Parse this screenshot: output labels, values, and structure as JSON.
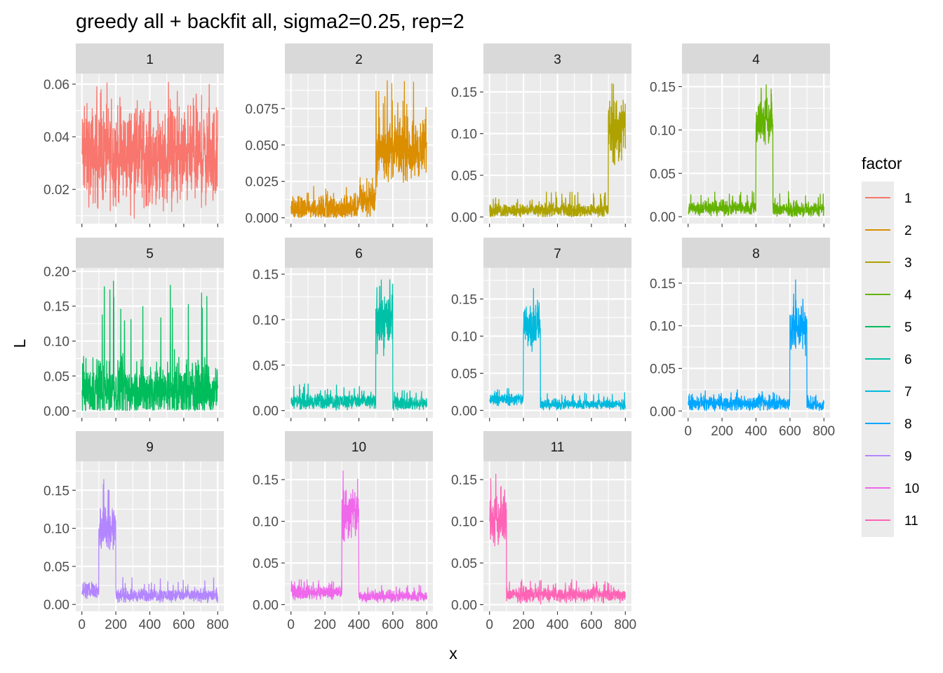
{
  "chart_data": {
    "type": "line",
    "title": "greedy all + backfit all, sigma2=0.25, rep=2",
    "xlabel": "x",
    "ylabel": "L",
    "legend_title": "factor",
    "legend_position": "right",
    "xlim": [
      0,
      800
    ],
    "x_ticks": [
      0,
      200,
      400,
      600,
      800
    ],
    "x_tick_labels": [
      "0",
      "200",
      "400",
      "600",
      "800"
    ],
    "n_points": 800,
    "grid": true,
    "panels": [
      {
        "factor": "1",
        "color": "#F8766D",
        "ylim": [
          0.007,
          0.064
        ],
        "yticks": [
          0.02,
          0.04,
          0.06
        ],
        "ytick_labels": [
          "0.02",
          "0.04",
          "0.06"
        ],
        "segments": [
          {
            "x": [
              0,
              800
            ],
            "mean": 0.033,
            "spread": 0.011,
            "max": 0.061
          }
        ]
      },
      {
        "factor": "2",
        "color": "#DB8E00",
        "ylim": [
          -0.004,
          0.099
        ],
        "yticks": [
          0,
          0.025,
          0.05,
          0.075
        ],
        "ytick_labels": [
          "0.000",
          "0.025",
          "0.050",
          "0.075"
        ],
        "segments": [
          {
            "x": [
              0,
              400
            ],
            "mean": 0.006,
            "spread": 0.005,
            "max": 0.022
          },
          {
            "x": [
              400,
              500
            ],
            "mean": 0.012,
            "spread": 0.006,
            "max": 0.028
          },
          {
            "x": [
              500,
              800
            ],
            "mean": 0.047,
            "spread": 0.012,
            "max": 0.095
          }
        ]
      },
      {
        "factor": "3",
        "color": "#AEA200",
        "ylim": [
          -0.008,
          0.172
        ],
        "yticks": [
          0,
          0.05,
          0.1,
          0.15
        ],
        "ytick_labels": [
          "0.00",
          "0.05",
          "0.10",
          "0.15"
        ],
        "segments": [
          {
            "x": [
              0,
              700
            ],
            "mean": 0.008,
            "spread": 0.005,
            "max": 0.03
          },
          {
            "x": [
              700,
              800
            ],
            "mean": 0.105,
            "spread": 0.025,
            "max": 0.162
          }
        ]
      },
      {
        "factor": "4",
        "color": "#64B200",
        "ylim": [
          -0.008,
          0.165
        ],
        "yticks": [
          0,
          0.05,
          0.1,
          0.15
        ],
        "ytick_labels": [
          "0.00",
          "0.05",
          "0.10",
          "0.15"
        ],
        "segments": [
          {
            "x": [
              0,
              400
            ],
            "mean": 0.01,
            "spread": 0.005,
            "max": 0.03
          },
          {
            "x": [
              400,
              500
            ],
            "mean": 0.11,
            "spread": 0.018,
            "max": 0.157
          },
          {
            "x": [
              500,
              800
            ],
            "mean": 0.008,
            "spread": 0.005,
            "max": 0.03
          }
        ]
      },
      {
        "factor": "5",
        "color": "#00BD5C",
        "ylim": [
          -0.01,
          0.205
        ],
        "yticks": [
          0,
          0.05,
          0.1,
          0.15,
          0.2
        ],
        "ytick_labels": [
          "0.00",
          "0.05",
          "0.10",
          "0.15",
          "0.20"
        ],
        "segments": [
          {
            "x": [
              0,
              800
            ],
            "mean": 0.03,
            "spread": 0.025,
            "max": 0.193
          }
        ]
      },
      {
        "factor": "6",
        "color": "#00C1A7",
        "ylim": [
          -0.008,
          0.157
        ],
        "yticks": [
          0,
          0.05,
          0.1,
          0.15
        ],
        "ytick_labels": [
          "0.00",
          "0.05",
          "0.10",
          "0.15"
        ],
        "segments": [
          {
            "x": [
              0,
              500
            ],
            "mean": 0.01,
            "spread": 0.005,
            "max": 0.03
          },
          {
            "x": [
              500,
              600
            ],
            "mean": 0.1,
            "spread": 0.02,
            "max": 0.146
          },
          {
            "x": [
              600,
              800
            ],
            "mean": 0.008,
            "spread": 0.004,
            "max": 0.022
          }
        ]
      },
      {
        "factor": "7",
        "color": "#00BADE",
        "ylim": [
          -0.01,
          0.192
        ],
        "yticks": [
          0,
          0.05,
          0.1,
          0.15
        ],
        "ytick_labels": [
          "0.00",
          "0.05",
          "0.10",
          "0.15"
        ],
        "segments": [
          {
            "x": [
              0,
              200
            ],
            "mean": 0.015,
            "spread": 0.005,
            "max": 0.03
          },
          {
            "x": [
              200,
              300
            ],
            "mean": 0.115,
            "spread": 0.02,
            "max": 0.182
          },
          {
            "x": [
              300,
              800
            ],
            "mean": 0.008,
            "spread": 0.004,
            "max": 0.024
          }
        ]
      },
      {
        "factor": "8",
        "color": "#00A6FF",
        "ylim": [
          -0.008,
          0.168
        ],
        "yticks": [
          0,
          0.05,
          0.1,
          0.15
        ],
        "ytick_labels": [
          "0.00",
          "0.05",
          "0.10",
          "0.15"
        ],
        "segments": [
          {
            "x": [
              0,
              600
            ],
            "mean": 0.009,
            "spread": 0.005,
            "max": 0.025
          },
          {
            "x": [
              600,
              700
            ],
            "mean": 0.1,
            "spread": 0.02,
            "max": 0.157
          },
          {
            "x": [
              700,
              800
            ],
            "mean": 0.007,
            "spread": 0.004,
            "max": 0.02
          }
        ]
      },
      {
        "factor": "9",
        "color": "#B385FF",
        "ylim": [
          -0.009,
          0.188
        ],
        "yticks": [
          0,
          0.05,
          0.1,
          0.15
        ],
        "ytick_labels": [
          "0.00",
          "0.05",
          "0.10",
          "0.15"
        ],
        "segments": [
          {
            "x": [
              0,
              100
            ],
            "mean": 0.018,
            "spread": 0.006,
            "max": 0.033
          },
          {
            "x": [
              100,
              200
            ],
            "mean": 0.1,
            "spread": 0.02,
            "max": 0.178
          },
          {
            "x": [
              200,
              800
            ],
            "mean": 0.012,
            "spread": 0.005,
            "max": 0.036
          }
        ]
      },
      {
        "factor": "10",
        "color": "#EF67EB",
        "ylim": [
          -0.008,
          0.172
        ],
        "yticks": [
          0,
          0.05,
          0.1,
          0.15
        ],
        "ytick_labels": [
          "0.00",
          "0.05",
          "0.10",
          "0.15"
        ],
        "segments": [
          {
            "x": [
              0,
              300
            ],
            "mean": 0.015,
            "spread": 0.005,
            "max": 0.03
          },
          {
            "x": [
              300,
              400
            ],
            "mean": 0.11,
            "spread": 0.02,
            "max": 0.163
          },
          {
            "x": [
              400,
              800
            ],
            "mean": 0.01,
            "spread": 0.004,
            "max": 0.024
          }
        ]
      },
      {
        "factor": "11",
        "color": "#FF63B6",
        "ylim": [
          -0.008,
          0.172
        ],
        "yticks": [
          0,
          0.05,
          0.1,
          0.15
        ],
        "ytick_labels": [
          "0.00",
          "0.05",
          "0.10",
          "0.15"
        ],
        "segments": [
          {
            "x": [
              0,
              100
            ],
            "mean": 0.1,
            "spread": 0.02,
            "max": 0.163
          },
          {
            "x": [
              100,
              800
            ],
            "mean": 0.012,
            "spread": 0.005,
            "max": 0.03
          }
        ]
      }
    ]
  }
}
